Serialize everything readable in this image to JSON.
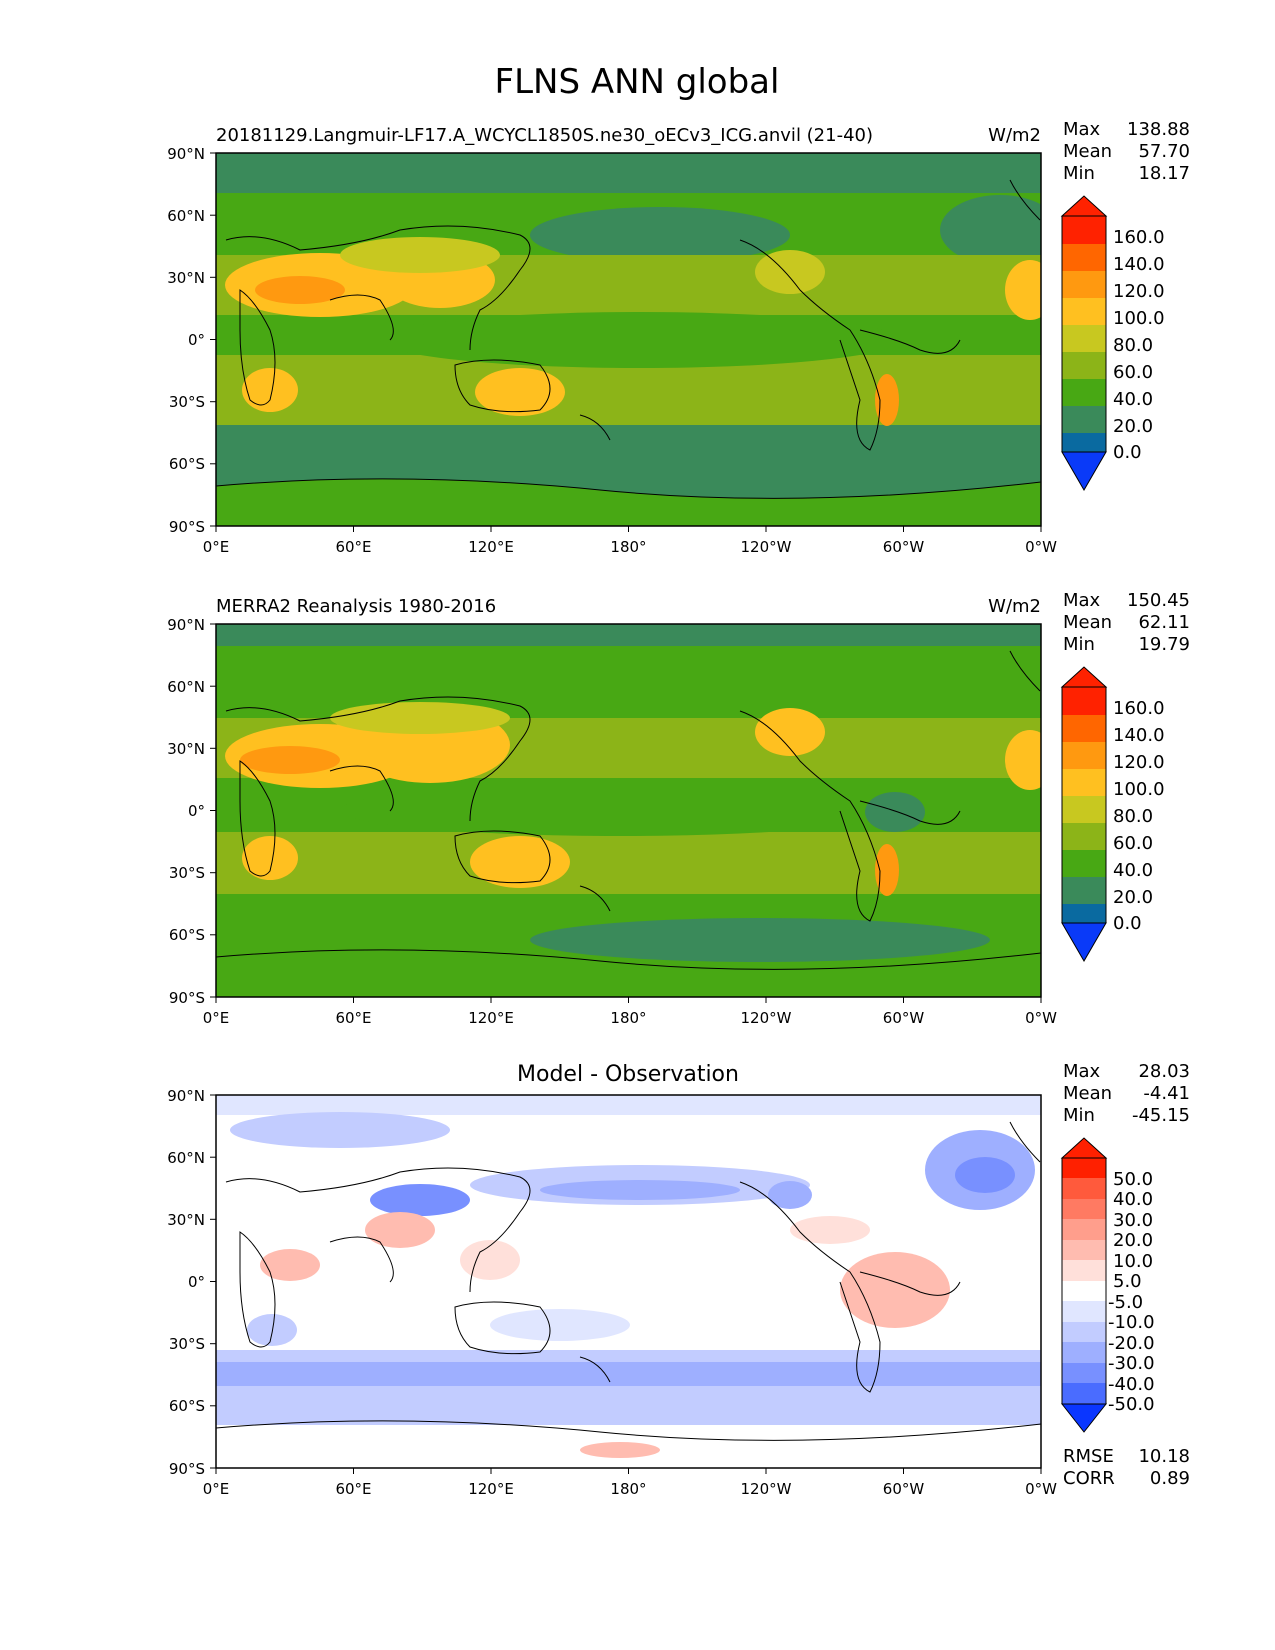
{
  "title": "FLNS ANN global",
  "longitude_ticks": [
    "0°E",
    "60°E",
    "120°E",
    "180°",
    "120°W",
    "60°W",
    "0°W"
  ],
  "latitude_ticks": [
    "90°N",
    "60°N",
    "30°N",
    "0°",
    "30°S",
    "60°S",
    "90°S"
  ],
  "chart_data": [
    {
      "type": "heatmap",
      "title": "20181129.Langmuir-LF17.A_WCYCL1850S.ne30_oECv3_ICG.anvil (21-40)",
      "units": "W/m2",
      "stats": [
        {
          "label": "Max",
          "value": "138.88"
        },
        {
          "label": "Mean",
          "value": "57.70"
        },
        {
          "label": "Min",
          "value": "18.17"
        }
      ],
      "colorbar": {
        "labels": [
          "160.0",
          "140.0",
          "120.0",
          "100.0",
          "80.0",
          "60.0",
          "40.0",
          "20.0",
          "0.0"
        ],
        "colors": [
          "#ff2200",
          "#ff6600",
          "#ff9910",
          "#ffc020",
          "#c8c820",
          "#8cb418",
          "#48a814",
          "#3a8a5a",
          "#0a6aa0",
          "#0a3af8"
        ]
      },
      "xlim": [
        0,
        360
      ],
      "ylim": [
        -90,
        90
      ]
    },
    {
      "type": "heatmap",
      "title": "MERRA2 Reanalysis 1980-2016",
      "units": "W/m2",
      "stats": [
        {
          "label": "Max",
          "value": "150.45"
        },
        {
          "label": "Mean",
          "value": "62.11"
        },
        {
          "label": "Min",
          "value": "19.79"
        }
      ],
      "colorbar": {
        "labels": [
          "160.0",
          "140.0",
          "120.0",
          "100.0",
          "80.0",
          "60.0",
          "40.0",
          "20.0",
          "0.0"
        ],
        "colors": [
          "#ff2200",
          "#ff6600",
          "#ff9910",
          "#ffc020",
          "#c8c820",
          "#8cb418",
          "#48a814",
          "#3a8a5a",
          "#0a6aa0",
          "#0a3af8"
        ]
      },
      "xlim": [
        0,
        360
      ],
      "ylim": [
        -90,
        90
      ]
    },
    {
      "type": "heatmap",
      "title": "Model - Observation",
      "units": "",
      "stats": [
        {
          "label": "Max",
          "value": "28.03"
        },
        {
          "label": "Mean",
          "value": "-4.41"
        },
        {
          "label": "Min",
          "value": "-45.15"
        }
      ],
      "colorbar": {
        "labels": [
          "50.0",
          "40.0",
          "30.0",
          "20.0",
          "10.0",
          "5.0",
          "-5.0",
          "-10.0",
          "-20.0",
          "-30.0",
          "-40.0",
          "-50.0"
        ],
        "colors": [
          "#ff2000",
          "#ff5a3c",
          "#ff7a62",
          "#ff9e8c",
          "#ffbcb0",
          "#ffe0da",
          "#ffffff",
          "#e0e6ff",
          "#c2ccff",
          "#9eafff",
          "#7890ff",
          "#4a6cff",
          "#0a36ff"
        ]
      },
      "extra_stats": [
        {
          "label": "RMSE",
          "value": "10.18"
        },
        {
          "label": "CORR",
          "value": "0.89"
        }
      ],
      "xlim": [
        0,
        360
      ],
      "ylim": [
        -90,
        90
      ]
    }
  ]
}
